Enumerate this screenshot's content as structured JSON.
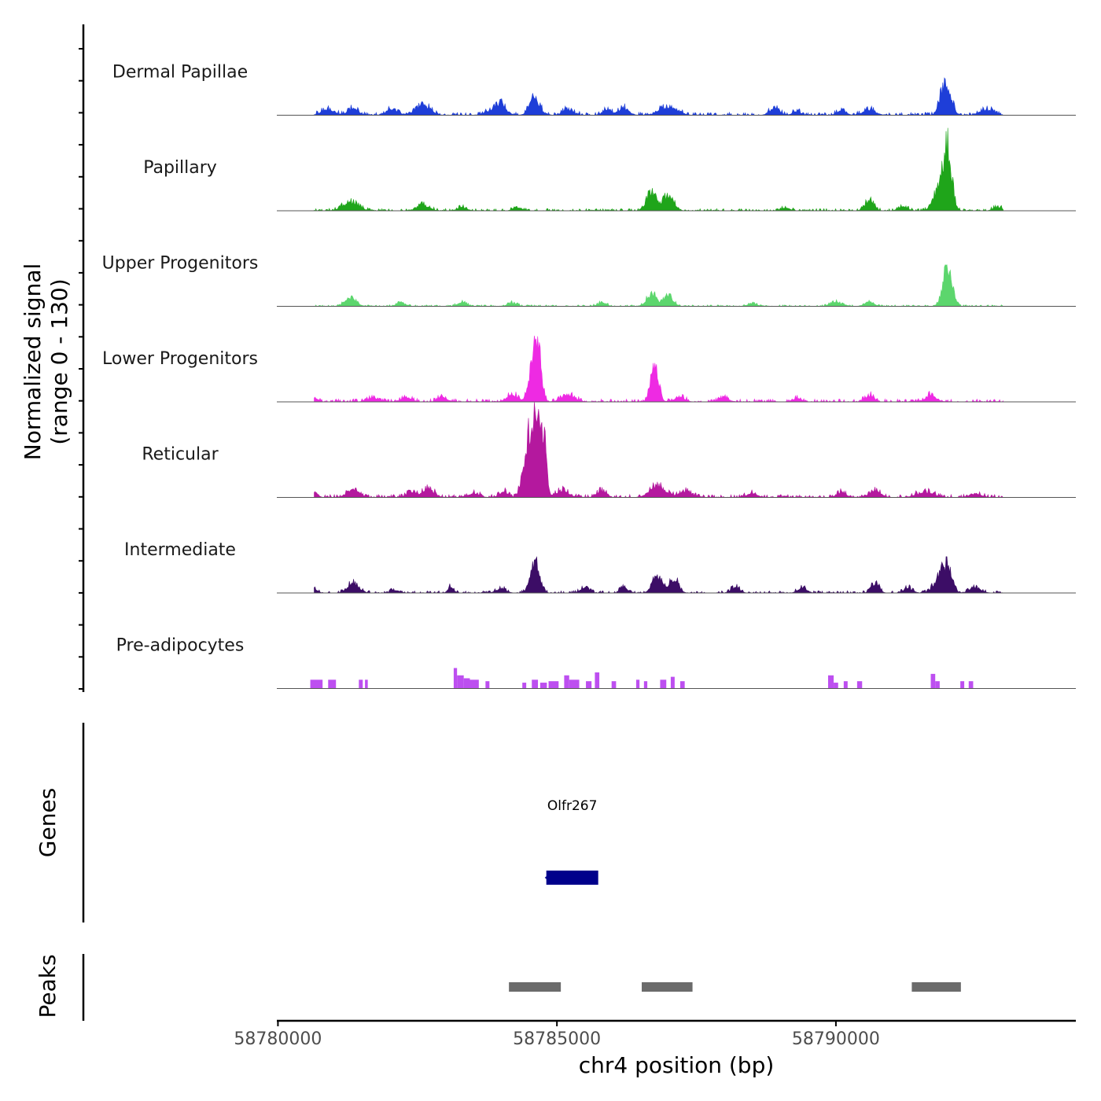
{
  "chart_data": {
    "type": "area",
    "chromosome": "chr4",
    "xlabel": "chr4 position (bp)",
    "xlim": [
      58779980,
      58794300
    ],
    "xticks": [
      58780000,
      58785000,
      58790000
    ],
    "xtick_labels": [
      "58780000",
      "58785000",
      "58790000"
    ],
    "signal_panel": {
      "ylabel_line1": "Normalized signal",
      "ylabel_line2": "(range 0 - 130)",
      "ylim": [
        0,
        130
      ],
      "data_start": 58780650,
      "data_end": 58793000
    },
    "tracks": [
      {
        "name": "Dermal Papillae",
        "color": "#1e3ed8",
        "baseline": 4,
        "peaks": [
          [
            58780900,
            8,
            120
          ],
          [
            58781350,
            10,
            90
          ],
          [
            58782050,
            8,
            110
          ],
          [
            58782600,
            14,
            130
          ],
          [
            58783900,
            8,
            150
          ],
          [
            58784000,
            10,
            80
          ],
          [
            58784600,
            24,
            90
          ],
          [
            58785200,
            8,
            100
          ],
          [
            58785900,
            7,
            80
          ],
          [
            58786200,
            10,
            90
          ],
          [
            58786900,
            8,
            120
          ],
          [
            58787100,
            8,
            110
          ],
          [
            58788900,
            10,
            90
          ],
          [
            58789300,
            5,
            80
          ],
          [
            58790100,
            7,
            80
          ],
          [
            58790600,
            8,
            110
          ],
          [
            58791900,
            20,
            70
          ],
          [
            58792000,
            34,
            80
          ],
          [
            58792700,
            8,
            120
          ]
        ]
      },
      {
        "name": "Papillary",
        "color": "#1fa51a",
        "baseline": 3,
        "peaks": [
          [
            58781300,
            12,
            140
          ],
          [
            58782600,
            8,
            110
          ],
          [
            58783300,
            5,
            80
          ],
          [
            58784300,
            5,
            80
          ],
          [
            58786700,
            26,
            90
          ],
          [
            58787000,
            22,
            90
          ],
          [
            58789100,
            4,
            80
          ],
          [
            58790600,
            14,
            80
          ],
          [
            58791200,
            6,
            80
          ],
          [
            58791850,
            30,
            100
          ],
          [
            58792000,
            82,
            75
          ],
          [
            58792900,
            5,
            80
          ]
        ]
      },
      {
        "name": "Upper Progenitors",
        "color": "#5cd66d",
        "baseline": 2,
        "peaks": [
          [
            58781300,
            12,
            100
          ],
          [
            58782200,
            5,
            80
          ],
          [
            58783300,
            6,
            80
          ],
          [
            58784200,
            5,
            80
          ],
          [
            58785800,
            5,
            80
          ],
          [
            58786700,
            18,
            90
          ],
          [
            58787000,
            16,
            80
          ],
          [
            58788500,
            4,
            80
          ],
          [
            58790000,
            6,
            100
          ],
          [
            58790600,
            7,
            80
          ],
          [
            58792000,
            58,
            80
          ]
        ]
      },
      {
        "name": "Lower Progenitors",
        "color": "#ee2ae3",
        "baseline": 4,
        "peaks": [
          [
            58780650,
            7,
            60
          ],
          [
            58781700,
            6,
            100
          ],
          [
            58782300,
            6,
            100
          ],
          [
            58782950,
            7,
            80
          ],
          [
            58784200,
            10,
            100
          ],
          [
            58784550,
            34,
            70
          ],
          [
            58784650,
            75,
            65
          ],
          [
            58785200,
            10,
            120
          ],
          [
            58786750,
            50,
            70
          ],
          [
            58787200,
            7,
            90
          ],
          [
            58788000,
            5,
            90
          ],
          [
            58789300,
            5,
            80
          ],
          [
            58790600,
            9,
            80
          ],
          [
            58791700,
            9,
            100
          ]
        ]
      },
      {
        "name": "Reticular",
        "color": "#b4189e",
        "baseline": 4,
        "peaks": [
          [
            58780650,
            8,
            60
          ],
          [
            58781350,
            12,
            110
          ],
          [
            58782400,
            8,
            90
          ],
          [
            58782700,
            12,
            100
          ],
          [
            58783500,
            6,
            100
          ],
          [
            58784050,
            8,
            80
          ],
          [
            58784400,
            32,
            60
          ],
          [
            58784500,
            75,
            55
          ],
          [
            58784620,
            127,
            50
          ],
          [
            58784750,
            100,
            50
          ],
          [
            58785100,
            10,
            110
          ],
          [
            58785800,
            9,
            80
          ],
          [
            58786800,
            16,
            140
          ],
          [
            58787300,
            9,
            110
          ],
          [
            58788500,
            6,
            90
          ],
          [
            58790100,
            8,
            80
          ],
          [
            58790700,
            10,
            100
          ],
          [
            58791600,
            8,
            150
          ],
          [
            58792500,
            6,
            100
          ]
        ]
      },
      {
        "name": "Intermediate",
        "color": "#3c0d66",
        "baseline": 3,
        "peaks": [
          [
            58780650,
            6,
            60
          ],
          [
            58781350,
            14,
            100
          ],
          [
            58782100,
            4,
            80
          ],
          [
            58783100,
            9,
            50
          ],
          [
            58784000,
            6,
            90
          ],
          [
            58784600,
            45,
            80
          ],
          [
            58785500,
            7,
            80
          ],
          [
            58786200,
            9,
            60
          ],
          [
            58786800,
            24,
            90
          ],
          [
            58787100,
            20,
            80
          ],
          [
            58788200,
            8,
            80
          ],
          [
            58789400,
            7,
            80
          ],
          [
            58790700,
            14,
            70
          ],
          [
            58791300,
            7,
            80
          ],
          [
            58791850,
            20,
            100
          ],
          [
            58792000,
            32,
            80
          ],
          [
            58792500,
            8,
            100
          ]
        ]
      },
      {
        "name": "Pre-adipocytes",
        "color": "#bd4ff0",
        "baseline": 0,
        "peaks": []
      }
    ],
    "preadipocyte_blocks": [
      [
        58780580,
        58780800,
        12
      ],
      [
        58780900,
        58781040,
        12
      ],
      [
        58781450,
        58781520,
        12
      ],
      [
        58781560,
        58781610,
        12
      ],
      [
        58783150,
        58783210,
        28
      ],
      [
        58783210,
        58783330,
        18
      ],
      [
        58783330,
        58783440,
        14
      ],
      [
        58783440,
        58783600,
        12
      ],
      [
        58783720,
        58783790,
        10
      ],
      [
        58784380,
        58784450,
        8
      ],
      [
        58784550,
        58784660,
        12
      ],
      [
        58784700,
        58784820,
        8
      ],
      [
        58784850,
        58785030,
        10
      ],
      [
        58785130,
        58785220,
        18
      ],
      [
        58785220,
        58785400,
        12
      ],
      [
        58785520,
        58785620,
        10
      ],
      [
        58785680,
        58785760,
        22
      ],
      [
        58785980,
        58786060,
        10
      ],
      [
        58786420,
        58786480,
        12
      ],
      [
        58786560,
        58786620,
        10
      ],
      [
        58786850,
        58786960,
        12
      ],
      [
        58787040,
        58787110,
        16
      ],
      [
        58787210,
        58787290,
        10
      ],
      [
        58789860,
        58789960,
        18
      ],
      [
        58789960,
        58790040,
        8
      ],
      [
        58790140,
        58790210,
        10
      ],
      [
        58790380,
        58790470,
        10
      ],
      [
        58791700,
        58791780,
        20
      ],
      [
        58791780,
        58791860,
        10
      ],
      [
        58792230,
        58792300,
        10
      ],
      [
        58792380,
        58792460,
        10
      ]
    ],
    "genes_panel": {
      "label": "Genes",
      "genes": [
        {
          "name": "Olfr267",
          "start": 58784810,
          "end": 58785740,
          "strand": "-",
          "color": "#00008b"
        }
      ]
    },
    "peaks_panel": {
      "label": "Peaks",
      "peaks": [
        [
          58784140,
          58785070
        ],
        [
          58786520,
          58787430
        ],
        [
          58791360,
          58792240
        ]
      ],
      "color": "#6b6b6b"
    }
  }
}
